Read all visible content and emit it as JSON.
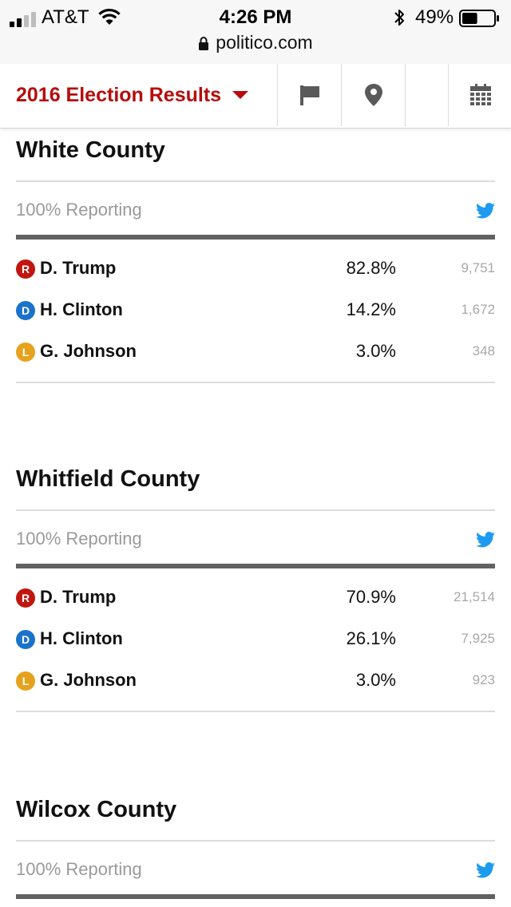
{
  "status_bar": {
    "carrier": "AT&T",
    "time": "4:26 PM",
    "battery_percent": "49%",
    "battery_level": 0.49,
    "url": "politico.com"
  },
  "header": {
    "title": "2016 Election Results",
    "nav_icons": [
      "flag-icon",
      "map-pin-icon",
      "",
      "calendar-icon"
    ]
  },
  "colors": {
    "brand_red": "#b60c0c",
    "republican": "#c0160f",
    "democrat": "#1a73c9",
    "libertarian": "#e6a21c",
    "twitter_blue": "#1d9bf0"
  },
  "counties": [
    {
      "name": "White County",
      "reporting": "100% Reporting",
      "candidates": [
        {
          "party": "R",
          "name": "D. Trump",
          "pct": "82.8%",
          "votes": "9,751"
        },
        {
          "party": "D",
          "name": "H. Clinton",
          "pct": "14.2%",
          "votes": "1,672"
        },
        {
          "party": "L",
          "name": "G. Johnson",
          "pct": "3.0%",
          "votes": "348"
        }
      ]
    },
    {
      "name": "Whitfield County",
      "reporting": "100% Reporting",
      "candidates": [
        {
          "party": "R",
          "name": "D. Trump",
          "pct": "70.9%",
          "votes": "21,514"
        },
        {
          "party": "D",
          "name": "H. Clinton",
          "pct": "26.1%",
          "votes": "7,925"
        },
        {
          "party": "L",
          "name": "G. Johnson",
          "pct": "3.0%",
          "votes": "923"
        }
      ]
    },
    {
      "name": "Wilcox County",
      "reporting": "100% Reporting",
      "candidates": []
    }
  ]
}
